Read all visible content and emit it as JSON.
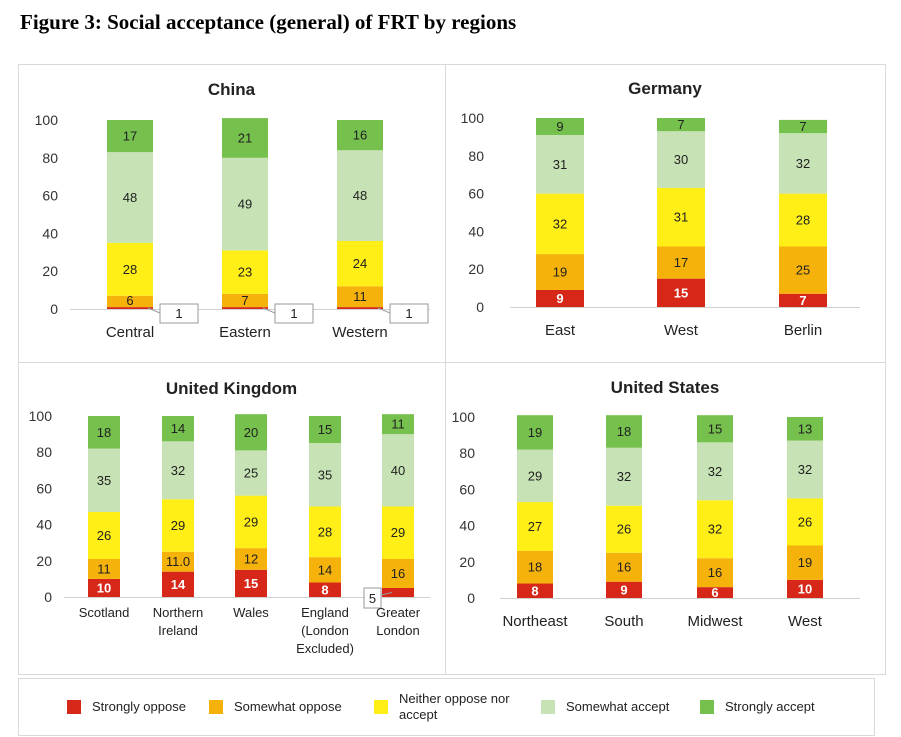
{
  "figure_title": "Figure 3: Social acceptance (general) of FRT by regions",
  "colors": {
    "Strongly oppose": "#d62718",
    "Somewhat oppose": "#f5b20a",
    "Neither oppose nor accept": "#ffef17",
    "Somewhat accept": "#c7e2b5",
    "Strongly accept": "#76c04d"
  },
  "legend": [
    "Strongly oppose",
    "Somewhat oppose",
    "Neither oppose nor accept",
    "Somewhat accept",
    "Strongly accept"
  ],
  "chart_data": [
    {
      "type": "bar",
      "stacked": true,
      "title": "China",
      "ylim": [
        0,
        100
      ],
      "yticks": [
        0,
        20,
        40,
        60,
        80,
        100
      ],
      "categories": [
        "Central",
        "Eastern",
        "Western"
      ],
      "series": [
        {
          "name": "Strongly oppose",
          "values": [
            1,
            1,
            1
          ],
          "labels": [
            "1",
            "1",
            "1"
          ]
        },
        {
          "name": "Somewhat oppose",
          "values": [
            6,
            7,
            11
          ],
          "labels": [
            "6",
            "7",
            "11"
          ]
        },
        {
          "name": "Neither oppose nor accept",
          "values": [
            28,
            23,
            24
          ],
          "labels": [
            "28",
            "23",
            "24"
          ]
        },
        {
          "name": "Somewhat accept",
          "values": [
            48,
            49,
            48
          ],
          "labels": [
            "48",
            "49",
            "48"
          ]
        },
        {
          "name": "Strongly accept",
          "values": [
            17,
            21,
            16
          ],
          "labels": [
            "17",
            "21",
            "16"
          ]
        }
      ]
    },
    {
      "type": "bar",
      "stacked": true,
      "title": "Germany",
      "ylim": [
        0,
        100
      ],
      "yticks": [
        0,
        20,
        40,
        60,
        80,
        100
      ],
      "categories": [
        "East",
        "West",
        "Berlin"
      ],
      "series": [
        {
          "name": "Strongly oppose",
          "values": [
            9,
            15,
            7
          ],
          "labels": [
            "9",
            "15",
            "7"
          ]
        },
        {
          "name": "Somewhat oppose",
          "values": [
            19,
            17,
            25
          ],
          "labels": [
            "19",
            "17",
            "25"
          ]
        },
        {
          "name": "Neither oppose nor accept",
          "values": [
            32,
            31,
            28
          ],
          "labels": [
            "32",
            "31",
            "28"
          ]
        },
        {
          "name": "Somewhat accept",
          "values": [
            31,
            30,
            32
          ],
          "labels": [
            "31",
            "30",
            "32"
          ]
        },
        {
          "name": "Strongly accept",
          "values": [
            9,
            7,
            7
          ],
          "labels": [
            "9",
            "7",
            "7"
          ]
        }
      ]
    },
    {
      "type": "bar",
      "stacked": true,
      "title": "United Kingdom",
      "ylim": [
        0,
        100
      ],
      "yticks": [
        0,
        20,
        40,
        60,
        80,
        100
      ],
      "categories": [
        "Scotland",
        "Northern Ireland",
        "Wales",
        "England (London Excluded)",
        "Greater London"
      ],
      "series": [
        {
          "name": "Strongly oppose",
          "values": [
            10,
            14,
            15,
            8,
            5
          ],
          "labels": [
            "10",
            "14",
            "15",
            "8",
            "5"
          ]
        },
        {
          "name": "Somewhat oppose",
          "values": [
            11,
            11.0,
            12,
            14,
            16
          ],
          "labels": [
            "11",
            "11.0",
            "12",
            "14",
            "16"
          ]
        },
        {
          "name": "Neither oppose nor accept",
          "values": [
            26,
            29,
            29,
            28,
            29
          ],
          "labels": [
            "26",
            "29",
            "29",
            "28",
            "29"
          ]
        },
        {
          "name": "Somewhat accept",
          "values": [
            35,
            32,
            25,
            35,
            40
          ],
          "labels": [
            "35",
            "32",
            "25",
            "35",
            "40"
          ]
        },
        {
          "name": "Strongly accept",
          "values": [
            18,
            14,
            20,
            15,
            11
          ],
          "labels": [
            "18",
            "14",
            "20",
            "15",
            "11"
          ]
        }
      ]
    },
    {
      "type": "bar",
      "stacked": true,
      "title": "United States",
      "ylim": [
        0,
        100
      ],
      "yticks": [
        0,
        20,
        40,
        60,
        80,
        100
      ],
      "categories": [
        "Northeast",
        "South",
        "Midwest",
        "West"
      ],
      "series": [
        {
          "name": "Strongly oppose",
          "values": [
            8,
            9,
            6,
            10
          ],
          "labels": [
            "8",
            "9",
            "6",
            "10"
          ]
        },
        {
          "name": "Somewhat oppose",
          "values": [
            18,
            16,
            16,
            19
          ],
          "labels": [
            "18",
            "16",
            "16",
            "19"
          ]
        },
        {
          "name": "Neither oppose nor accept",
          "values": [
            27,
            26,
            32,
            26
          ],
          "labels": [
            "27",
            "26",
            "32",
            "26"
          ]
        },
        {
          "name": "Somewhat accept",
          "values": [
            29,
            32,
            32,
            32
          ],
          "labels": [
            "29",
            "32",
            "32",
            "32"
          ]
        },
        {
          "name": "Strongly accept",
          "values": [
            19,
            18,
            15,
            13
          ],
          "labels": [
            "19",
            "18",
            "15",
            "13"
          ]
        }
      ]
    }
  ]
}
